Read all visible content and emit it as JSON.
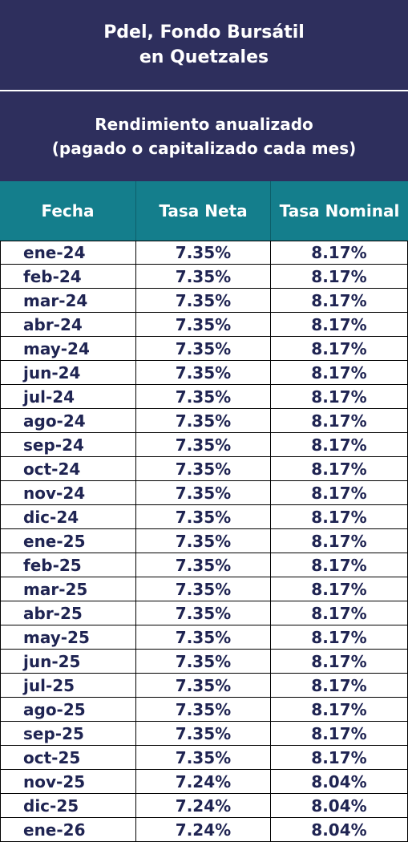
{
  "title": {
    "line1": "Pdel, Fondo Bursátil",
    "line2": "en Quetzales"
  },
  "subtitle": {
    "line1": "Rendimiento anualizado",
    "line2": "(pagado o capitalizado cada mes)"
  },
  "columns": {
    "fecha": "Fecha",
    "tasa_neta": "Tasa Neta",
    "tasa_nominal": "Tasa Nominal"
  },
  "rows": [
    {
      "fecha": "ene-24",
      "neta": "7.35%",
      "nominal": "8.17%"
    },
    {
      "fecha": "feb-24",
      "neta": "7.35%",
      "nominal": "8.17%"
    },
    {
      "fecha": "mar-24",
      "neta": "7.35%",
      "nominal": "8.17%"
    },
    {
      "fecha": "abr-24",
      "neta": "7.35%",
      "nominal": "8.17%"
    },
    {
      "fecha": "may-24",
      "neta": "7.35%",
      "nominal": "8.17%"
    },
    {
      "fecha": "jun-24",
      "neta": "7.35%",
      "nominal": "8.17%"
    },
    {
      "fecha": "jul-24",
      "neta": "7.35%",
      "nominal": "8.17%"
    },
    {
      "fecha": "ago-24",
      "neta": "7.35%",
      "nominal": "8.17%"
    },
    {
      "fecha": "sep-24",
      "neta": "7.35%",
      "nominal": "8.17%"
    },
    {
      "fecha": "oct-24",
      "neta": "7.35%",
      "nominal": "8.17%"
    },
    {
      "fecha": "nov-24",
      "neta": "7.35%",
      "nominal": "8.17%"
    },
    {
      "fecha": "dic-24",
      "neta": "7.35%",
      "nominal": "8.17%"
    },
    {
      "fecha": "ene-25",
      "neta": "7.35%",
      "nominal": "8.17%"
    },
    {
      "fecha": "feb-25",
      "neta": "7.35%",
      "nominal": "8.17%"
    },
    {
      "fecha": "mar-25",
      "neta": "7.35%",
      "nominal": "8.17%"
    },
    {
      "fecha": "abr-25",
      "neta": "7.35%",
      "nominal": "8.17%"
    },
    {
      "fecha": "may-25",
      "neta": "7.35%",
      "nominal": "8.17%"
    },
    {
      "fecha": "jun-25",
      "neta": "7.35%",
      "nominal": "8.17%"
    },
    {
      "fecha": "jul-25",
      "neta": "7.35%",
      "nominal": "8.17%"
    },
    {
      "fecha": "ago-25",
      "neta": "7.35%",
      "nominal": "8.17%"
    },
    {
      "fecha": "sep-25",
      "neta": "7.35%",
      "nominal": "8.17%"
    },
    {
      "fecha": "oct-25",
      "neta": "7.35%",
      "nominal": "8.17%"
    },
    {
      "fecha": "nov-25",
      "neta": "7.24%",
      "nominal": "8.04%"
    },
    {
      "fecha": "dic-25",
      "neta": "7.24%",
      "nominal": "8.04%"
    },
    {
      "fecha": "ene-26",
      "neta": "7.24%",
      "nominal": "8.04%"
    }
  ]
}
